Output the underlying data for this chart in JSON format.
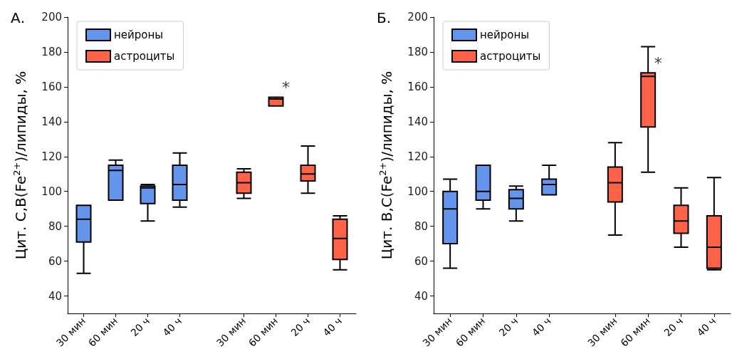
{
  "chart_data": [
    {
      "type": "box",
      "title": "А.",
      "ylabel": "Цит. C,B(Fe$^{2+}$)/липиды, %",
      "categories": [
        "30 мин",
        "60 мин",
        "20 ч",
        "40 ч",
        null,
        "30 мин",
        "60 мин",
        "20 ч",
        "40 ч"
      ],
      "ylim": [
        30,
        200
      ],
      "yticks": [
        40,
        60,
        80,
        100,
        120,
        140,
        160,
        180,
        200
      ],
      "grid": false,
      "legend": "top left",
      "annotations": [
        "*"
      ],
      "series": [
        {
          "name": "нейроны",
          "color": "#6495ed",
          "boxes": [
            {
              "low": 53,
              "q1": 71,
              "median": 84,
              "q3": 92,
              "high": 92
            },
            {
              "low": 95,
              "q1": 95,
              "median": 112,
              "q3": 115,
              "high": 118
            },
            {
              "low": 83,
              "q1": 93,
              "median": 102,
              "q3": 103,
              "high": 104
            },
            {
              "low": 91,
              "q1": 95,
              "median": 104,
              "q3": 115,
              "high": 122
            },
            null,
            null,
            null,
            null,
            null
          ]
        },
        {
          "name": "астроциты",
          "color": "#ff6347",
          "boxes": [
            null,
            null,
            null,
            null,
            null,
            {
              "low": 96,
              "q1": 99,
              "median": 105,
              "q3": 111,
              "high": 113
            },
            {
              "low": 149,
              "q1": 149,
              "median": 153,
              "q3": 154,
              "high": 154
            },
            {
              "low": 99,
              "q1": 106,
              "median": 110,
              "q3": 115,
              "high": 126
            },
            {
              "low": 55,
              "q1": 61,
              "median": 73,
              "q3": 84,
              "high": 86
            }
          ]
        }
      ]
    },
    {
      "type": "box",
      "title": "Б.",
      "ylabel": "Цит. B,C(Fe$^{2+}$)/липиды, %",
      "categories": [
        "30 мин",
        "60 мин",
        "20 ч",
        "40 ч",
        null,
        "30 мин",
        "60 мин",
        "20 ч",
        "40 ч"
      ],
      "ylim": [
        30,
        200
      ],
      "yticks": [
        40,
        60,
        80,
        100,
        120,
        140,
        160,
        180,
        200
      ],
      "grid": false,
      "legend": "top left",
      "annotations": [
        "*"
      ],
      "series": [
        {
          "name": "нейроны",
          "color": "#6495ed",
          "boxes": [
            {
              "low": 56,
              "q1": 70,
              "median": 90,
              "q3": 100,
              "high": 107
            },
            {
              "low": 90,
              "q1": 95,
              "median": 100,
              "q3": 115,
              "high": 115
            },
            {
              "low": 83,
              "q1": 90,
              "median": 96,
              "q3": 101,
              "high": 103
            },
            {
              "low": 98,
              "q1": 98,
              "median": 104,
              "q3": 107,
              "high": 115
            },
            null,
            null,
            null,
            null,
            null
          ]
        },
        {
          "name": "астроциты",
          "color": "#ff6347",
          "boxes": [
            null,
            null,
            null,
            null,
            null,
            {
              "low": 75,
              "q1": 94,
              "median": 105,
              "q3": 114,
              "high": 128
            },
            {
              "low": 111,
              "q1": 137,
              "median": 166,
              "q3": 168,
              "high": 183
            },
            {
              "low": 68,
              "q1": 76,
              "median": 83,
              "q3": 92,
              "high": 102
            },
            {
              "low": 55,
              "q1": 56,
              "median": 68,
              "q3": 86,
              "high": 108
            }
          ]
        }
      ]
    }
  ]
}
